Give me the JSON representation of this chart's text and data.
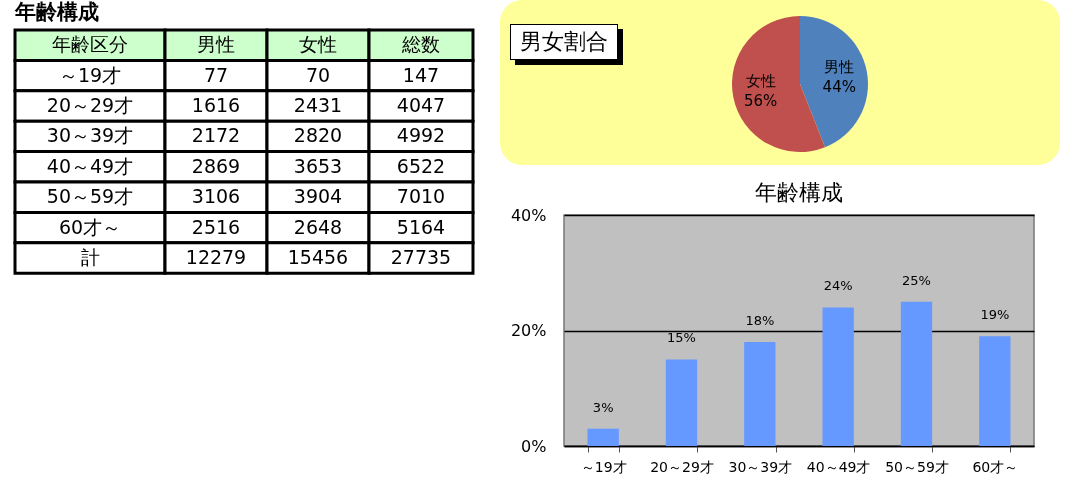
{
  "chart_data": [
    {
      "type": "other",
      "title": "年齢構成",
      "xlabel": "年齢区分",
      "categories": [
        "～19才",
        "20～29才",
        "30～39才",
        "40～49才",
        "50～59才",
        "60才～",
        "計"
      ],
      "series": [
        {
          "name": "男性",
          "values": [
            77,
            1616,
            2172,
            2869,
            3106,
            2516,
            12279
          ]
        },
        {
          "name": "女性",
          "values": [
            70,
            2431,
            2820,
            3653,
            3904,
            2648,
            15456
          ]
        },
        {
          "name": "総数",
          "values": [
            147,
            4047,
            4992,
            6522,
            7010,
            5164,
            27735
          ]
        }
      ],
      "data_labels": true
    },
    {
      "type": "pie",
      "title": "男女割合",
      "categories": [
        "男性",
        "女性"
      ],
      "values": [
        44,
        56
      ],
      "colors": [
        "#4f81bd",
        "#c0504d"
      ],
      "value_labels": [
        "44%",
        "56%"
      ]
    },
    {
      "type": "bar",
      "title": "年齢構成",
      "categories": [
        "～19才",
        "20～29才",
        "30～39才",
        "40～49才",
        "50～59才",
        "60才～"
      ],
      "values": [
        3,
        15,
        18,
        24,
        25,
        19
      ],
      "value_labels": [
        "3%",
        "15%",
        "18%",
        "24%",
        "25%",
        "19%"
      ],
      "color": "#6699ff",
      "ylim": [
        0,
        40
      ],
      "yticks": [
        {
          "value": 0,
          "label": "0%"
        },
        {
          "value": 20,
          "label": "20%"
        },
        {
          "value": 40,
          "label": "40%"
        }
      ],
      "grid": "y"
    }
  ]
}
